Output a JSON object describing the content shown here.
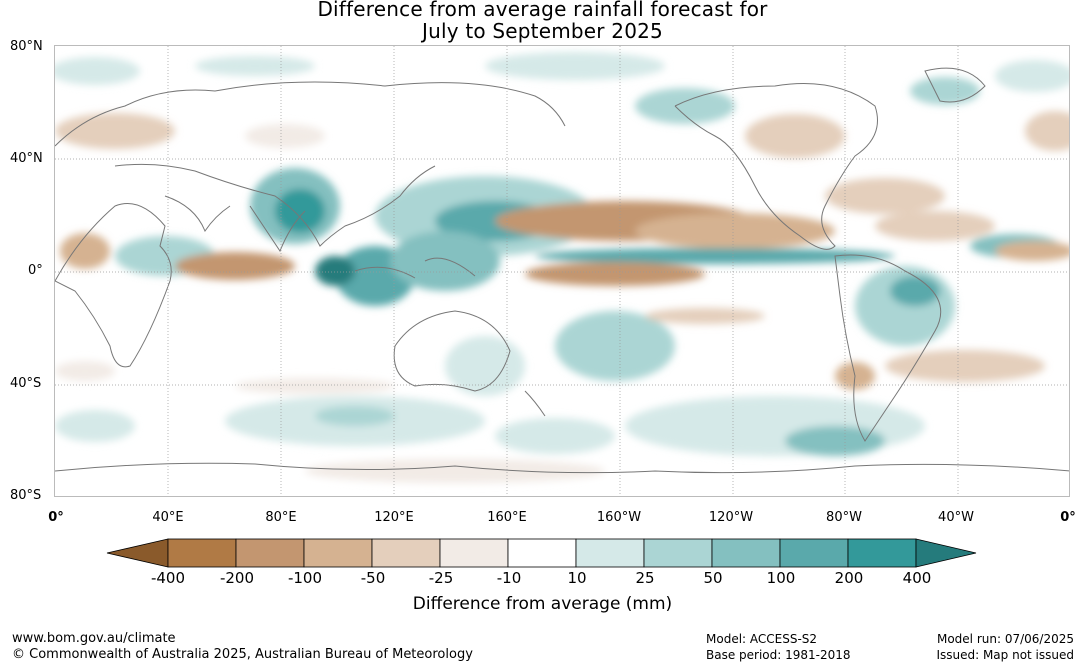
{
  "title": {
    "line1": "Difference from average rainfall forecast for",
    "line2": "July to September 2025"
  },
  "map": {
    "latitude_labels": [
      "80°N",
      "40°N",
      "0°",
      "40°S",
      "80°S"
    ],
    "longitude_labels": [
      "0°",
      "40°E",
      "80°E",
      "120°E",
      "160°E",
      "160°W",
      "120°W",
      "80°W",
      "40°W",
      "0°"
    ]
  },
  "colorbar": {
    "labels": [
      "-400",
      "-200",
      "-100",
      "-50",
      "-25",
      "-10",
      "10",
      "25",
      "50",
      "100",
      "200",
      "400"
    ],
    "colors": [
      "#8a5a2b",
      "#b07a45",
      "#c39670",
      "#d5b291",
      "#e4cfbc",
      "#f2ebe6",
      "#ffffff",
      "#d5e9e8",
      "#abd5d4",
      "#84c0c0",
      "#5aa9ab",
      "#33999a",
      "#257b7c"
    ],
    "title": "Difference from average (mm)"
  },
  "footer": {
    "website": "www.bom.gov.au/climate",
    "copyright": "© Commonwealth of Australia 2025, Australian Bureau of Meteorology",
    "model": "Model: ACCESS-S2",
    "base_period": "Base period: 1981-2018",
    "model_run": "Model run: 07/06/2025",
    "issued": "Issued: Map not issued"
  }
}
